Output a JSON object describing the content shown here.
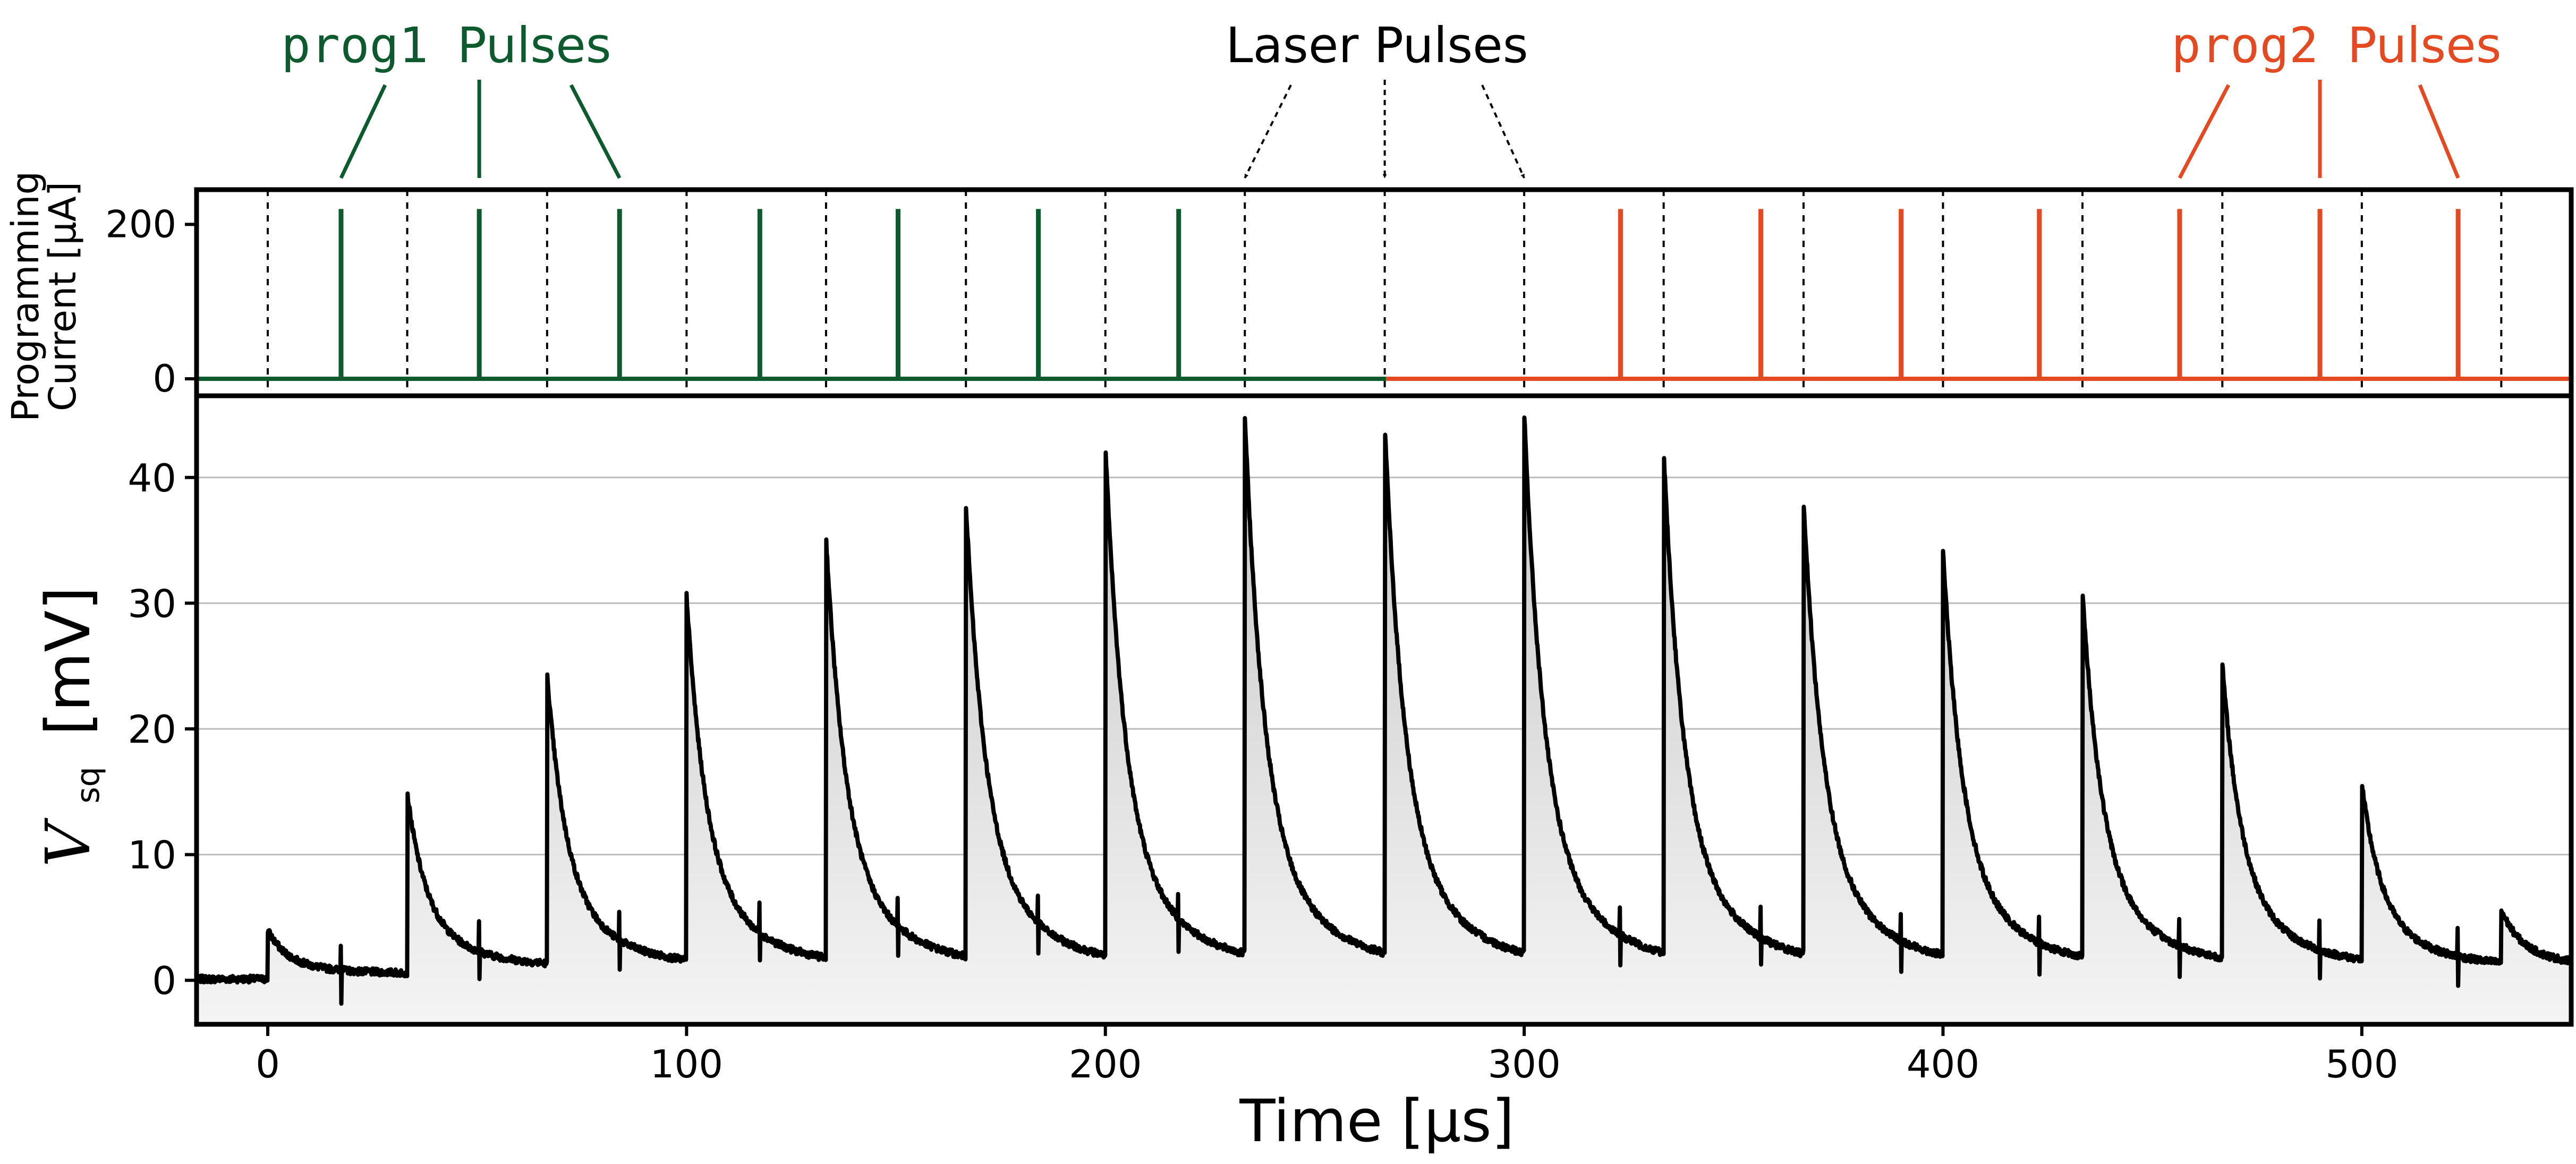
{
  "colors": {
    "prog1": "#0d5a2e",
    "prog2": "#e34a22",
    "trace": "#000000",
    "fill": "#bdbdbd",
    "grid": "#bbbbbb"
  },
  "annotations": {
    "prog1_label_mono": "prog1",
    "prog1_label_text": "Pulses",
    "laser_label": "Laser Pulses",
    "prog2_label_mono": "prog2",
    "prog2_label_text": "Pulses"
  },
  "chart_data": [
    {
      "type": "line",
      "panel": "top",
      "ylabel_line1": "Programming",
      "ylabel_line2": "Current [μA]",
      "xlim": [
        -17,
        550
      ],
      "ylim": [
        -22,
        245
      ],
      "yticks": [
        0,
        200
      ],
      "ytick_labels": [
        "0",
        "200"
      ],
      "laser_pulse_times": [
        0,
        33.3,
        66.7,
        100,
        133.3,
        166.7,
        200,
        233.3,
        266.7,
        300,
        333.3,
        366.7,
        400,
        433.3,
        466.7,
        500,
        533.3
      ],
      "series": [
        {
          "name": "prog1",
          "baseline_range": [
            -17,
            267
          ],
          "pulse_amplitude": 220,
          "pulse_times": [
            17.5,
            50.5,
            84,
            117.5,
            150.5,
            184,
            217.5
          ]
        },
        {
          "name": "prog2",
          "baseline_range": [
            267,
            550
          ],
          "pulse_amplitude": 220,
          "pulse_times": [
            323,
            356.5,
            390,
            423,
            456.5,
            490,
            523
          ]
        }
      ]
    },
    {
      "type": "line",
      "panel": "bottom",
      "ylabel_main": "V",
      "ylabel_sub": "sq",
      "ylabel_unit": "[mV]",
      "xlabel": "Time [μs]",
      "xlim": [
        -17,
        550
      ],
      "ylim": [
        -3.5,
        46.5
      ],
      "xticks": [
        0,
        100,
        200,
        300,
        400,
        500
      ],
      "xtick_labels": [
        "0",
        "100",
        "200",
        "300",
        "400",
        "500"
      ],
      "yticks": [
        0,
        10,
        20,
        30,
        40
      ],
      "ytick_labels": [
        "0",
        "10",
        "20",
        "30",
        "40"
      ],
      "grid": "horizontal",
      "baseline_level": 1.0,
      "decay_tau_us": 4.5,
      "laser_pulse_times": [
        0,
        33.3,
        66.7,
        100,
        133.3,
        166.7,
        200,
        233.3,
        266.7,
        300,
        333.3,
        366.7,
        400,
        433.3,
        466.7,
        500,
        533.3
      ],
      "peak_values_mV": [
        4.5,
        14.8,
        24.0,
        30.0,
        34.5,
        37.0,
        41.5,
        43.8,
        43.2,
        44.0,
        41.0,
        37.2,
        33.2,
        30.0,
        24.3,
        15.0,
        5.2
      ],
      "programming_spike_times": [
        17.5,
        50.5,
        84,
        117.5,
        150.5,
        184,
        217.5,
        323,
        356.5,
        390,
        423,
        456.5,
        490,
        523
      ]
    }
  ]
}
